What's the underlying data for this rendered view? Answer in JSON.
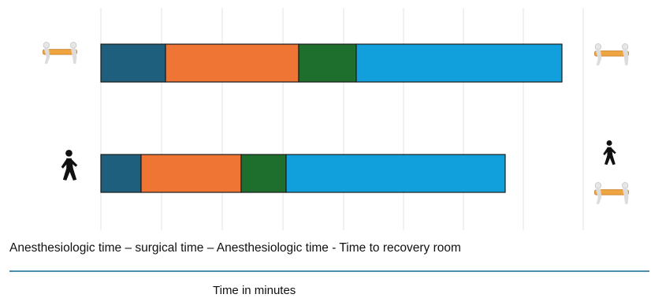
{
  "caption": "Anesthesiologic time – surgical time – Anesthesiologic time - Time to recovery room",
  "chart_data": {
    "type": "bar",
    "orientation": "horizontal",
    "stacked": true,
    "title": "",
    "xlabel": "Time in minutes",
    "ylabel": "",
    "grid": true,
    "legend": "none",
    "segment_colors": [
      "#1f5f7e",
      "#ee7533",
      "#1e6e2e",
      "#12a0dc"
    ],
    "bars": [
      {
        "start_icon": "stretcher-carry-icon",
        "end_icons": [
          "stretcher-carry-icon"
        ],
        "segments": [
          82,
          169,
          73,
          261
        ]
      },
      {
        "start_icon": "walking-person-icon",
        "end_icons": [
          "walking-person-icon",
          "stretcher-carry-icon"
        ],
        "segments": [
          51,
          127,
          57,
          278
        ]
      }
    ]
  }
}
